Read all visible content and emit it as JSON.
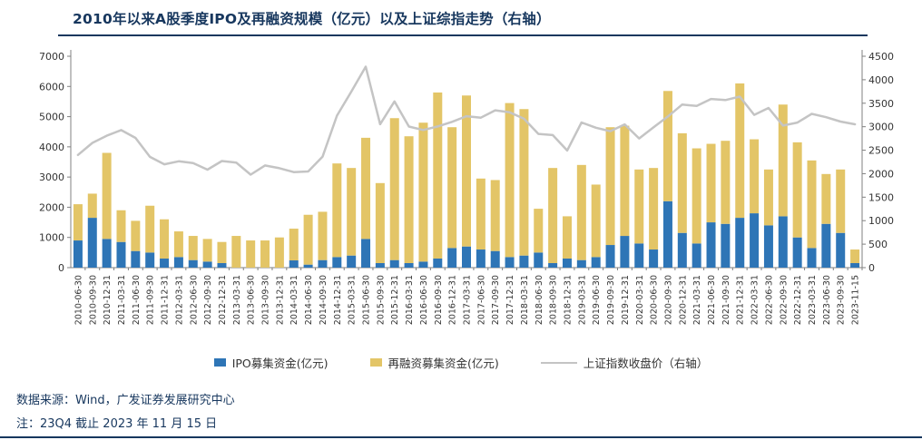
{
  "title": "2010年以来A股季度IPO及再融资规模（亿元）以及上证综指走势（右轴）",
  "footer": {
    "source": "数据来源：Wind，广发证券发展研究中心",
    "note": "注：23Q4 截止 2023 年 11 月 15 日"
  },
  "colors": {
    "navy": "#17375E",
    "ipo_bar": "#2E75B6",
    "refinance_bar": "#E3C567",
    "index_line": "#C4C4C4",
    "axis": "#808080",
    "axis_text": "#333333"
  },
  "chart_data": {
    "type": "bar",
    "subtype": "stacked-bars-with-line",
    "title": "2010年以来A股季度IPO及再融资规模（亿元）以及上证综指走势（右轴）",
    "legend_position": "bottom",
    "grid": false,
    "left_axis": {
      "min": 0,
      "max": 7000,
      "step": 1000
    },
    "right_axis": {
      "min": 0,
      "max": 4500,
      "step": 500
    },
    "categories": [
      "2010-06-30",
      "2010-09-30",
      "2010-12-31",
      "2011-03-31",
      "2011-06-30",
      "2011-09-30",
      "2011-12-31",
      "2012-03-31",
      "2012-06-30",
      "2012-09-30",
      "2012-12-31",
      "2013-03-31",
      "2013-06-30",
      "2013-09-30",
      "2013-12-31",
      "2014-03-31",
      "2014-06-30",
      "2014-09-30",
      "2014-12-31",
      "2015-03-31",
      "2015-06-30",
      "2015-09-30",
      "2015-12-31",
      "2016-03-31",
      "2016-06-30",
      "2016-09-30",
      "2016-12-31",
      "2017-03-31",
      "2017-06-30",
      "2017-09-30",
      "2017-12-31",
      "2018-03-31",
      "2018-06-30",
      "2018-09-30",
      "2018-12-31",
      "2019-03-31",
      "2019-06-30",
      "2019-09-30",
      "2019-12-31",
      "2020-03-31",
      "2020-06-30",
      "2020-09-30",
      "2020-12-31",
      "2021-03-31",
      "2021-06-30",
      "2021-09-30",
      "2021-12-31",
      "2022-03-31",
      "2022-06-30",
      "2022-09-30",
      "2022-12-31",
      "2023-03-31",
      "2023-06-30",
      "2023-09-30",
      "2023-11-15"
    ],
    "series": [
      {
        "name": "IPO募集资金(亿元)",
        "type": "bar",
        "stack": true,
        "axis": "left",
        "color": "#2E75B6",
        "values": [
          900,
          1650,
          950,
          850,
          550,
          500,
          300,
          350,
          250,
          200,
          150,
          0,
          0,
          0,
          0,
          240,
          100,
          250,
          350,
          400,
          950,
          150,
          250,
          150,
          200,
          300,
          650,
          700,
          600,
          550,
          350,
          400,
          500,
          150,
          300,
          250,
          350,
          750,
          1050,
          800,
          600,
          2200,
          1150,
          800,
          1500,
          1450,
          1650,
          1800,
          1400,
          1700,
          1000,
          650,
          1450,
          1150,
          150
        ]
      },
      {
        "name": "再融资募集资金(亿元)",
        "type": "bar",
        "stack": true,
        "axis": "left",
        "color": "#E3C567",
        "values": [
          1200,
          800,
          2850,
          1050,
          1000,
          1550,
          1300,
          850,
          800,
          750,
          700,
          1050,
          900,
          900,
          1000,
          1050,
          1650,
          1600,
          3100,
          2900,
          3350,
          2650,
          4700,
          4200,
          4600,
          5500,
          4000,
          5000,
          2350,
          2350,
          5100,
          4850,
          1450,
          3150,
          1400,
          3150,
          2400,
          3900,
          3650,
          2450,
          2700,
          3650,
          3300,
          3150,
          2600,
          2750,
          4450,
          2450,
          1850,
          3700,
          3150,
          2900,
          1650,
          2100,
          450
        ]
      },
      {
        "name": "上证指数收盘价（右轴）",
        "type": "line",
        "axis": "right",
        "color": "#C4C4C4",
        "values": [
          2398,
          2656,
          2808,
          2928,
          2762,
          2359,
          2199,
          2263,
          2225,
          2086,
          2269,
          2237,
          1979,
          2175,
          2116,
          2033,
          2048,
          2364,
          3235,
          3748,
          4277,
          3053,
          3539,
          3004,
          2930,
          3005,
          3104,
          3223,
          3192,
          3349,
          3307,
          3169,
          2847,
          2821,
          2494,
          3091,
          2979,
          2905,
          3050,
          2750,
          2985,
          3218,
          3473,
          3442,
          3591,
          3568,
          3640,
          3252,
          3399,
          3024,
          3089,
          3273,
          3202,
          3110,
          3052
        ]
      }
    ]
  }
}
